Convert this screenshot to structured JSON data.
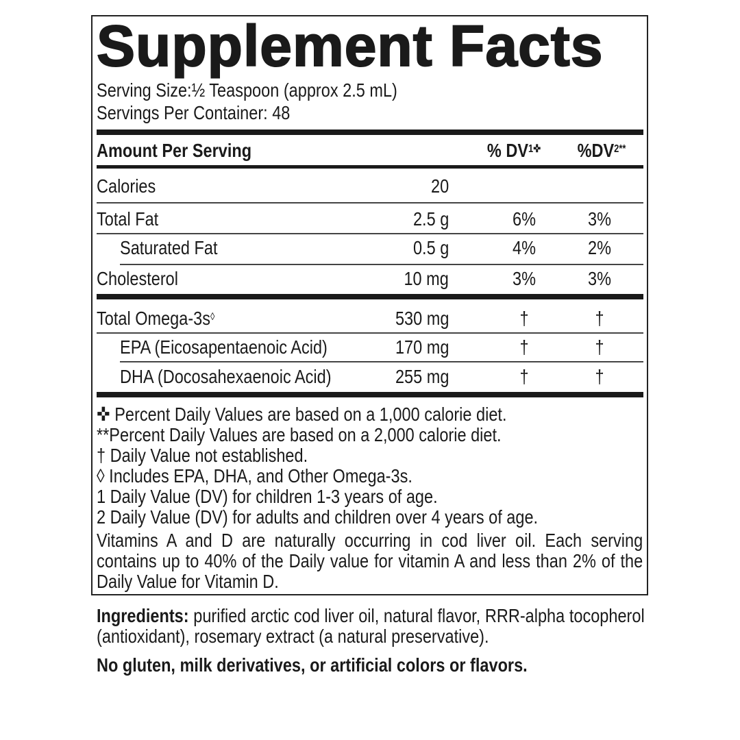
{
  "title": "Supplement Facts",
  "serving_size": "Serving Size:½ Teaspoon (approx 2.5 mL)",
  "servings_per_container": "Servings Per Container: 48",
  "header": {
    "amount": "Amount Per Serving",
    "dv1": "% DV",
    "dv1_sup": "1✜",
    "dv2": "%DV",
    "dv2_sup": "2**"
  },
  "rows": [
    {
      "name": "Calories",
      "amount": "20",
      "dv1": "",
      "dv2": ""
    },
    {
      "name": "Total Fat",
      "amount": "2.5 g",
      "dv1": "6%",
      "dv2": "3%"
    },
    {
      "name": "Saturated Fat",
      "amount": "0.5 g",
      "dv1": "4%",
      "dv2": "2%"
    },
    {
      "name": "Cholesterol",
      "amount": "10 mg",
      "dv1": "3%",
      "dv2": "3%"
    },
    {
      "name": "Total Omega-3s",
      "name_sup": "◊",
      "amount": "530 mg",
      "dv1": "†",
      "dv2": "†"
    },
    {
      "name": "EPA (Eicosapentaenoic Acid)",
      "amount": "170 mg",
      "dv1": "†",
      "dv2": "†"
    },
    {
      "name": "DHA (Docosahexaenoic Acid)",
      "amount": "255 mg",
      "dv1": "†",
      "dv2": "†"
    }
  ],
  "footnotes": [
    "✜ Percent Daily Values are based on a 1,000 calorie diet.",
    "**Percent Daily Values are based on a 2,000 calorie diet.",
    "† Daily Value not established.",
    "◊ Includes EPA, DHA, and Other Omega-3s.",
    "1 Daily Value (DV) for children 1-3 years of age.",
    "2 Daily Value (DV) for adults and children over 4 years of age."
  ],
  "vitamin_note": "Vitamins A and D are naturally occurring in cod liver oil. Each serving contains up to 40% of the Daily value for vitamin A and less than 2% of the Daily Value for Vitamin D.",
  "ingredients": {
    "label": "Ingredients:",
    "text": " purified arctic cod liver oil, natural flavor, RRR-alpha tocopherol (antioxidant), rosemary extract (a natural preservative)."
  },
  "allergen": "No gluten, milk derivatives, or artificial colors or flavors."
}
